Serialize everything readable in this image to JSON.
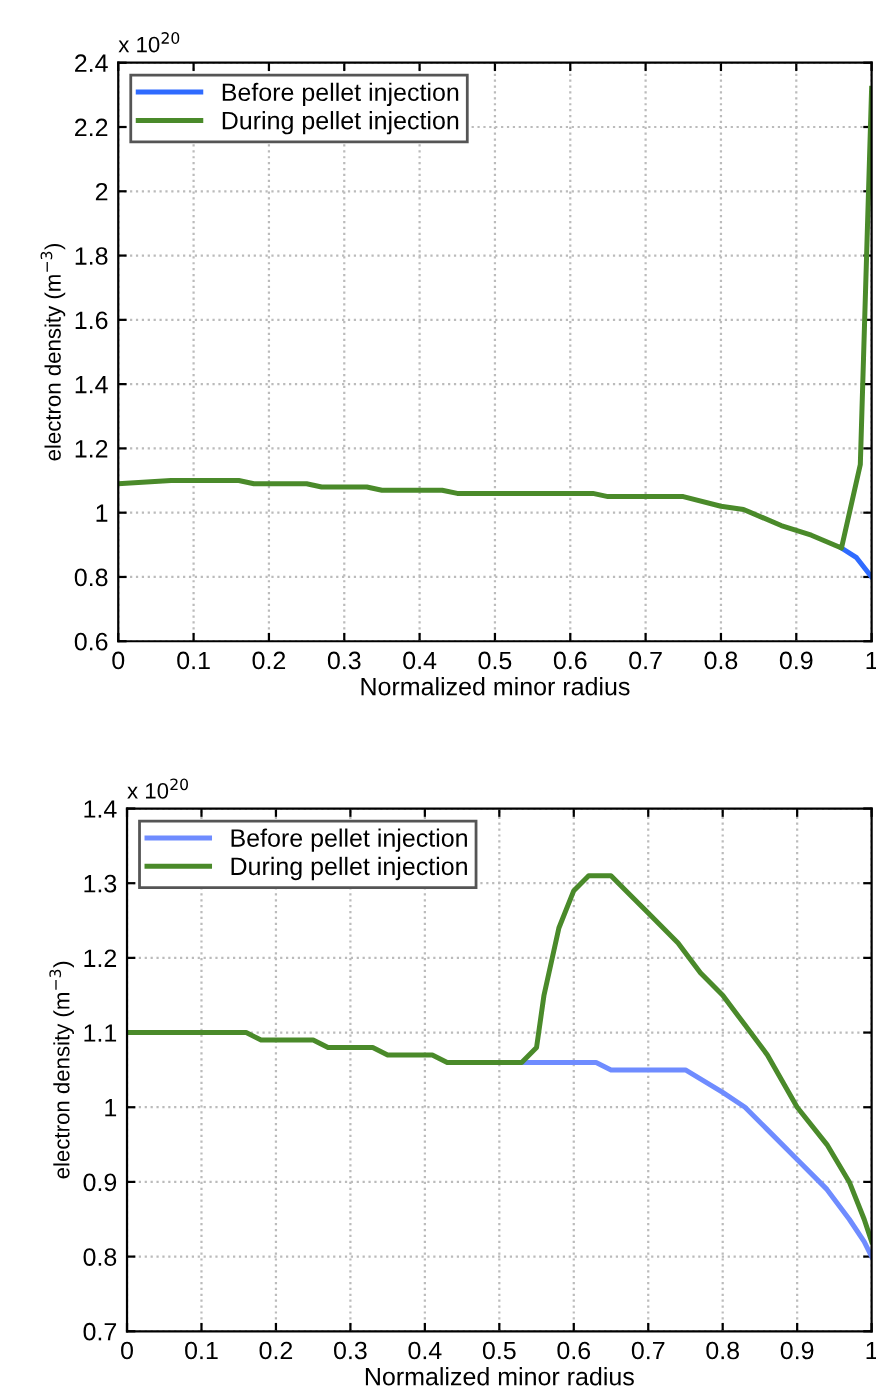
{
  "chart_data": [
    {
      "type": "line",
      "xlabel": "Normalized minor radius",
      "ylabel": "electron density (m$^{−3}$)",
      "annotations": [
        "x 10$^{20}$"
      ],
      "xlim": [
        0,
        1
      ],
      "xticks": [
        0,
        0.1,
        0.2,
        0.3,
        0.4,
        0.5,
        0.6,
        0.7,
        0.8,
        0.9,
        1
      ],
      "ylim": [
        0.6,
        2.4
      ],
      "yticks": [
        0.6,
        0.8,
        1,
        1.2,
        1.4,
        1.6,
        1.8,
        2,
        2.2,
        2.4
      ],
      "grid": true,
      "legend": "top left",
      "series": [
        {
          "name": "Before pellet injection",
          "color": "#2f6bff",
          "x": [
            0.96,
            0.98,
            1.0
          ],
          "values": [
            0.89,
            0.86,
            0.8
          ]
        },
        {
          "name": "During pellet injection",
          "color": "#4a8a2a",
          "x": [
            0,
            0.07,
            0.16,
            0.18,
            0.25,
            0.27,
            0.33,
            0.35,
            0.43,
            0.45,
            0.63,
            0.65,
            0.75,
            0.8,
            0.83,
            0.88,
            0.92,
            0.96,
            0.985,
            1.0
          ],
          "values": [
            1.09,
            1.1,
            1.1,
            1.09,
            1.09,
            1.08,
            1.08,
            1.07,
            1.07,
            1.06,
            1.06,
            1.05,
            1.05,
            1.02,
            1.01,
            0.96,
            0.93,
            0.89,
            1.15,
            2.32
          ]
        }
      ]
    },
    {
      "type": "line",
      "xlabel": "Normalized minor radius",
      "ylabel": "electron density (m$^{−3}$)",
      "annotations": [
        "x 10$^{20}$"
      ],
      "xlim": [
        0,
        1
      ],
      "xticks": [
        0,
        0.1,
        0.2,
        0.3,
        0.4,
        0.5,
        0.6,
        0.7,
        0.8,
        0.9,
        1
      ],
      "ylim": [
        0.7,
        1.4
      ],
      "yticks": [
        0.7,
        0.8,
        0.9,
        1,
        1.1,
        1.2,
        1.3,
        1.4
      ],
      "grid": true,
      "legend": "top left",
      "series": [
        {
          "name": "Before pellet injection",
          "color": "#6f8cff",
          "x": [
            0.53,
            0.63,
            0.65,
            0.75,
            0.8,
            0.83,
            0.86,
            0.9,
            0.94,
            0.97,
            0.99,
            1.0
          ],
          "values": [
            1.06,
            1.06,
            1.05,
            1.05,
            1.02,
            1.0,
            0.97,
            0.93,
            0.89,
            0.85,
            0.82,
            0.8
          ]
        },
        {
          "name": "During pellet injection",
          "color": "#4a8a2a",
          "x": [
            0,
            0.16,
            0.18,
            0.25,
            0.27,
            0.33,
            0.35,
            0.41,
            0.43,
            0.53,
            0.55,
            0.56,
            0.58,
            0.6,
            0.62,
            0.65,
            0.67,
            0.7,
            0.74,
            0.77,
            0.8,
            0.83,
            0.86,
            0.9,
            0.94,
            0.97,
            0.99,
            1.0
          ],
          "values": [
            1.1,
            1.1,
            1.09,
            1.09,
            1.08,
            1.08,
            1.07,
            1.07,
            1.06,
            1.06,
            1.08,
            1.15,
            1.24,
            1.29,
            1.31,
            1.31,
            1.29,
            1.26,
            1.22,
            1.18,
            1.15,
            1.11,
            1.07,
            1.0,
            0.95,
            0.9,
            0.85,
            0.82
          ]
        }
      ]
    }
  ]
}
